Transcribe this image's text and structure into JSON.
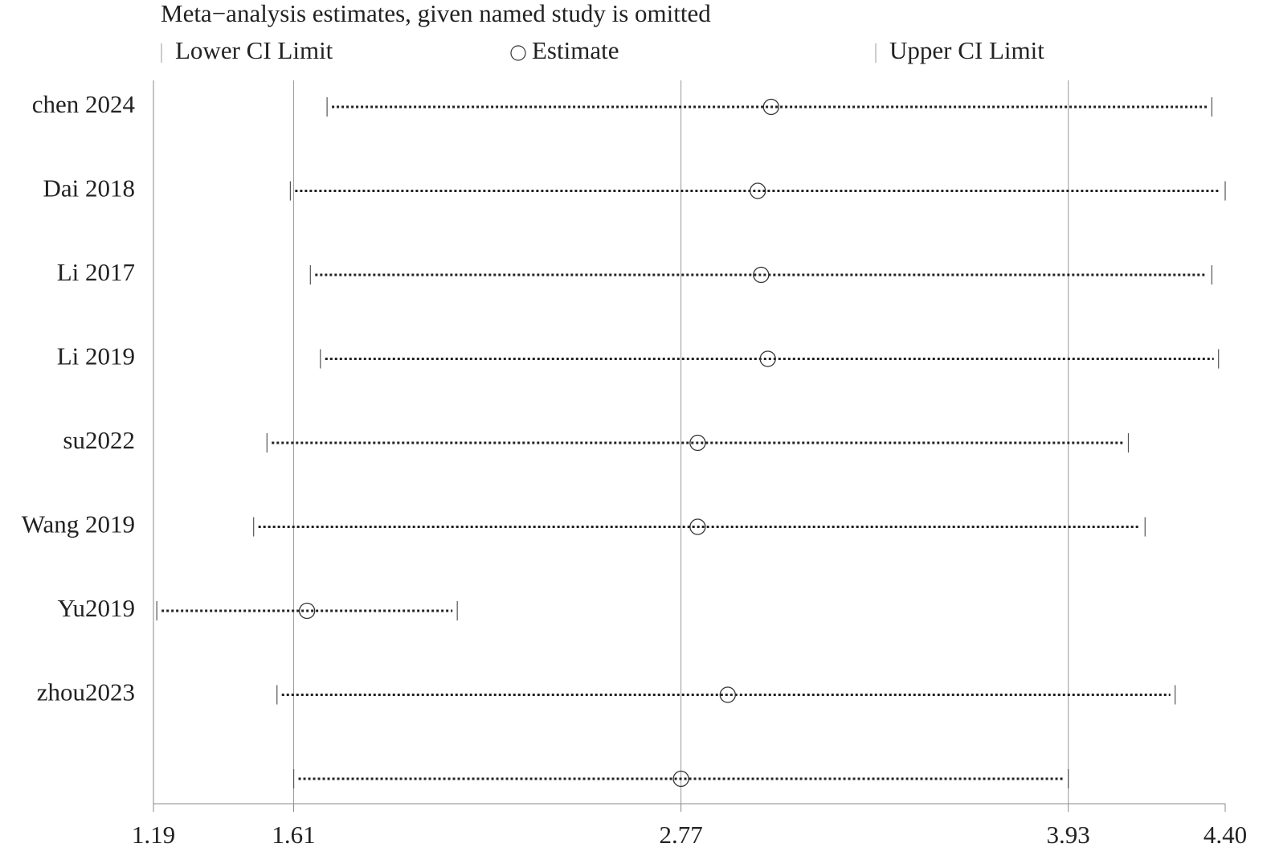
{
  "chart_data": {
    "type": "interval",
    "title": "Meta−analysis estimates, given named study is omitted",
    "categories": [
      "chen 2024",
      "Dai 2018",
      "Li 2017",
      "Li 2019",
      "su2022",
      "Wang 2019",
      "Yu2019",
      "zhou2023",
      null
    ],
    "series": [
      {
        "name": "Lower CI Limit",
        "color": "#555555",
        "values": [
          1.71,
          1.6,
          1.66,
          1.69,
          1.53,
          1.49,
          1.2,
          1.56,
          1.61
        ]
      },
      {
        "name": "Estimate",
        "color": "#333333",
        "values": [
          3.04,
          3.0,
          3.01,
          3.03,
          2.82,
          2.82,
          1.65,
          2.91,
          2.77
        ]
      },
      {
        "name": "Upper CI Limit",
        "color": "#555555",
        "values": [
          4.36,
          4.4,
          4.36,
          4.38,
          4.11,
          4.16,
          2.1,
          4.25,
          3.93
        ]
      }
    ],
    "xlim": [
      1.19,
      4.4
    ],
    "xticks": [
      1.19,
      1.61,
      2.77,
      3.93,
      {
        "value": 4.4,
        "label": "4.40"
      }
    ],
    "grid": true
  }
}
